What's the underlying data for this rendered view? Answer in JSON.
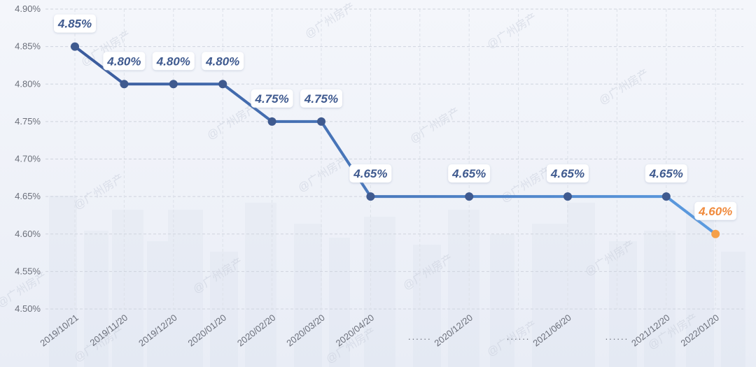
{
  "chart_data": {
    "type": "line",
    "categories": [
      "2019/10/21",
      "2019/11/20",
      "2019/12/20",
      "2020/01/20",
      "2020/02/20",
      "2020/03/20",
      "2020/04/20",
      "",
      "2020/12/20",
      "",
      "2021/06/20",
      "",
      "2021/12/20",
      "2022/01/20"
    ],
    "gap_labels": [
      "......",
      "......",
      "......"
    ],
    "values": [
      4.85,
      4.8,
      4.8,
      4.8,
      4.75,
      4.75,
      4.65,
      null,
      4.65,
      null,
      4.65,
      null,
      4.65,
      4.6
    ],
    "data_labels": [
      "4.85%",
      "4.80%",
      "4.80%",
      "4.80%",
      "4.75%",
      "4.75%",
      "4.65%",
      "",
      "4.65%",
      "",
      "4.65%",
      "",
      "4.65%",
      "4.60%"
    ],
    "y_ticks": [
      "4.90%",
      "4.85%",
      "4.80%",
      "4.75%",
      "4.70%",
      "4.65%",
      "4.60%",
      "4.55%",
      "4.50%"
    ],
    "ylim": [
      4.5,
      4.9
    ],
    "grid": true,
    "title": "",
    "xlabel": "",
    "ylabel": ""
  },
  "colors": {
    "line_start": "#3a5a9c",
    "line_end": "#5b9be0",
    "point": "#3f5a8f",
    "highlight": "#f5a04a",
    "label_text": "#3f5a8f",
    "highlight_text": "#f08a3c"
  },
  "watermark": "@广州房产"
}
